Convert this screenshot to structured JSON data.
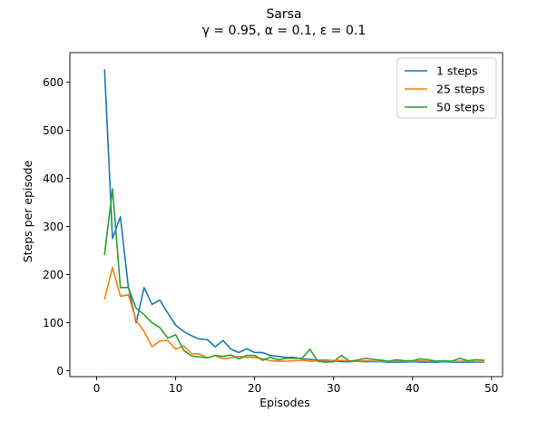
{
  "chart_data": {
    "type": "line",
    "title": "Sarsa",
    "subtitle": "γ = 0.95, α = 0.1, ε = 0.1",
    "xlabel": "Episodes",
    "ylabel": "Steps per episode",
    "xlim": [
      -3.4,
      51.4
    ],
    "ylim": [
      -12,
      661
    ],
    "xticks": [
      0,
      10,
      20,
      30,
      40,
      50
    ],
    "yticks": [
      0,
      100,
      200,
      300,
      400,
      500,
      600
    ],
    "grid": false,
    "legend_position": "top-right",
    "x": [
      1,
      2,
      3,
      4,
      5,
      6,
      7,
      8,
      9,
      10,
      11,
      12,
      13,
      14,
      15,
      16,
      17,
      18,
      19,
      20,
      21,
      22,
      23,
      24,
      25,
      26,
      27,
      28,
      29,
      30,
      31,
      32,
      33,
      34,
      35,
      36,
      37,
      38,
      39,
      40,
      41,
      42,
      43,
      44,
      45,
      46,
      47,
      48,
      49
    ],
    "series": [
      {
        "name": "1 steps",
        "color": "#1f77b4",
        "values": [
          625,
          275,
          320,
          175,
          100,
          173,
          138,
          147,
          120,
          95,
          82,
          73,
          66,
          65,
          50,
          63,
          45,
          38,
          46,
          38,
          38,
          32,
          30,
          28,
          28,
          25,
          24,
          22,
          22,
          21,
          19,
          19,
          20,
          19,
          19,
          19,
          18,
          18,
          18,
          19,
          18,
          18,
          18,
          19,
          18,
          18,
          18,
          18,
          18
        ]
      },
      {
        "name": "25 steps",
        "color": "#ff7f0e",
        "values": [
          150,
          215,
          155,
          158,
          105,
          82,
          50,
          62,
          63,
          45,
          52,
          36,
          35,
          27,
          32,
          25,
          27,
          30,
          28,
          28,
          25,
          21,
          20,
          20,
          21,
          22,
          20,
          21,
          20,
          21,
          22,
          20,
          20,
          21,
          20,
          20,
          19,
          20,
          20,
          20,
          21,
          20,
          20,
          20,
          19,
          20,
          20,
          19,
          19
        ]
      },
      {
        "name": "50 steps",
        "color": "#2ca02c",
        "values": [
          242,
          378,
          173,
          173,
          130,
          117,
          100,
          90,
          68,
          75,
          43,
          31,
          29,
          27,
          32,
          30,
          33,
          25,
          32,
          32,
          22,
          28,
          23,
          26,
          26,
          26,
          45,
          20,
          18,
          19,
          32,
          20,
          22,
          26,
          24,
          22,
          20,
          23,
          21,
          21,
          25,
          23,
          20,
          21,
          20,
          26,
          21,
          23,
          22
        ]
      }
    ]
  }
}
